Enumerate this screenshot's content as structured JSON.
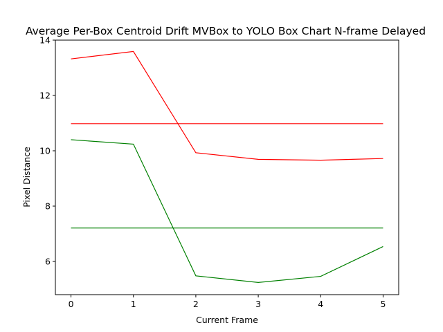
{
  "chart_data": {
    "type": "line",
    "title": "Average Per-Box Centroid Drift MVBox to YOLO Box Chart N-frame Delayed",
    "xlabel": "Current Frame",
    "ylabel": "Pixel Distance",
    "x": [
      0,
      1,
      2,
      3,
      4,
      5
    ],
    "xlim": [
      -0.25,
      5.25
    ],
    "ylim": [
      4.8,
      14.0
    ],
    "xticks": [
      "0",
      "1",
      "2",
      "3",
      "4",
      "5"
    ],
    "yticks": [
      "6",
      "8",
      "10",
      "12",
      "14"
    ],
    "grid": false,
    "legend": "none",
    "series": [
      {
        "color": "#ff0000",
        "values": [
          13.32,
          13.59,
          9.93,
          9.69,
          9.66,
          9.72
        ]
      },
      {
        "color": "#ff0000",
        "values": [
          10.98,
          10.98,
          10.98,
          10.98,
          10.98,
          10.98
        ]
      },
      {
        "color": "#008000",
        "values": [
          10.4,
          10.24,
          5.48,
          5.24,
          5.46,
          6.54
        ]
      },
      {
        "color": "#008000",
        "values": [
          7.21,
          7.21,
          7.21,
          7.21,
          7.21,
          7.21
        ]
      }
    ]
  }
}
